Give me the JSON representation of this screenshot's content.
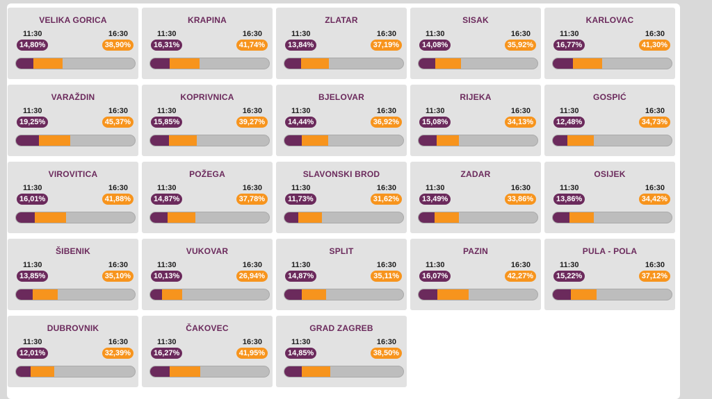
{
  "colors": {
    "purple": "#6b2a5c",
    "orange": "#f7941d",
    "track": "#bdbdbd",
    "card": "#e2e2e2"
  },
  "chart_data": {
    "type": "bar",
    "title": "",
    "times": [
      "11:30",
      "16:30"
    ],
    "units": "%",
    "scale_max": 100,
    "items": [
      {
        "city": "VELIKA GORICA",
        "t1": "14,80%",
        "t2": "38,90%",
        "v1": 14.8,
        "v2": 38.9
      },
      {
        "city": "KRAPINA",
        "t1": "16,31%",
        "t2": "41,74%",
        "v1": 16.31,
        "v2": 41.74
      },
      {
        "city": "ZLATAR",
        "t1": "13,84%",
        "t2": "37,19%",
        "v1": 13.84,
        "v2": 37.19
      },
      {
        "city": "SISAK",
        "t1": "14,08%",
        "t2": "35,92%",
        "v1": 14.08,
        "v2": 35.92
      },
      {
        "city": "KARLOVAC",
        "t1": "16,77%",
        "t2": "41,30%",
        "v1": 16.77,
        "v2": 41.3
      },
      {
        "city": "VARAŽDIN",
        "t1": "19,25%",
        "t2": "45,37%",
        "v1": 19.25,
        "v2": 45.37
      },
      {
        "city": "KOPRIVNICA",
        "t1": "15,85%",
        "t2": "39,27%",
        "v1": 15.85,
        "v2": 39.27
      },
      {
        "city": "BJELOVAR",
        "t1": "14,44%",
        "t2": "36,92%",
        "v1": 14.44,
        "v2": 36.92
      },
      {
        "city": "RIJEKA",
        "t1": "15,08%",
        "t2": "34,13%",
        "v1": 15.08,
        "v2": 34.13
      },
      {
        "city": "GOSPIĆ",
        "t1": "12,48%",
        "t2": "34,73%",
        "v1": 12.48,
        "v2": 34.73
      },
      {
        "city": "VIROVITICA",
        "t1": "16,01%",
        "t2": "41,88%",
        "v1": 16.01,
        "v2": 41.88
      },
      {
        "city": "POŽEGA",
        "t1": "14,87%",
        "t2": "37,78%",
        "v1": 14.87,
        "v2": 37.78
      },
      {
        "city": "SLAVONSKI BROD",
        "t1": "11,73%",
        "t2": "31,62%",
        "v1": 11.73,
        "v2": 31.62
      },
      {
        "city": "ZADAR",
        "t1": "13,49%",
        "t2": "33,86%",
        "v1": 13.49,
        "v2": 33.86
      },
      {
        "city": "OSIJEK",
        "t1": "13,86%",
        "t2": "34,42%",
        "v1": 13.86,
        "v2": 34.42
      },
      {
        "city": "ŠIBENIK",
        "t1": "13,85%",
        "t2": "35,10%",
        "v1": 13.85,
        "v2": 35.1
      },
      {
        "city": "VUKOVAR",
        "t1": "10,13%",
        "t2": "26,94%",
        "v1": 10.13,
        "v2": 26.94
      },
      {
        "city": "SPLIT",
        "t1": "14,87%",
        "t2": "35,11%",
        "v1": 14.87,
        "v2": 35.11
      },
      {
        "city": "PAZIN",
        "t1": "16,07%",
        "t2": "42,27%",
        "v1": 16.07,
        "v2": 42.27
      },
      {
        "city": "PULA - POLA",
        "t1": "15,22%",
        "t2": "37,12%",
        "v1": 15.22,
        "v2": 37.12
      },
      {
        "city": "DUBROVNIK",
        "t1": "12,01%",
        "t2": "32,39%",
        "v1": 12.01,
        "v2": 32.39
      },
      {
        "city": "ČAKOVEC",
        "t1": "16,27%",
        "t2": "41,95%",
        "v1": 16.27,
        "v2": 41.95
      },
      {
        "city": "GRAD ZAGREB",
        "t1": "14,85%",
        "t2": "38,50%",
        "v1": 14.85,
        "v2": 38.5
      }
    ]
  }
}
